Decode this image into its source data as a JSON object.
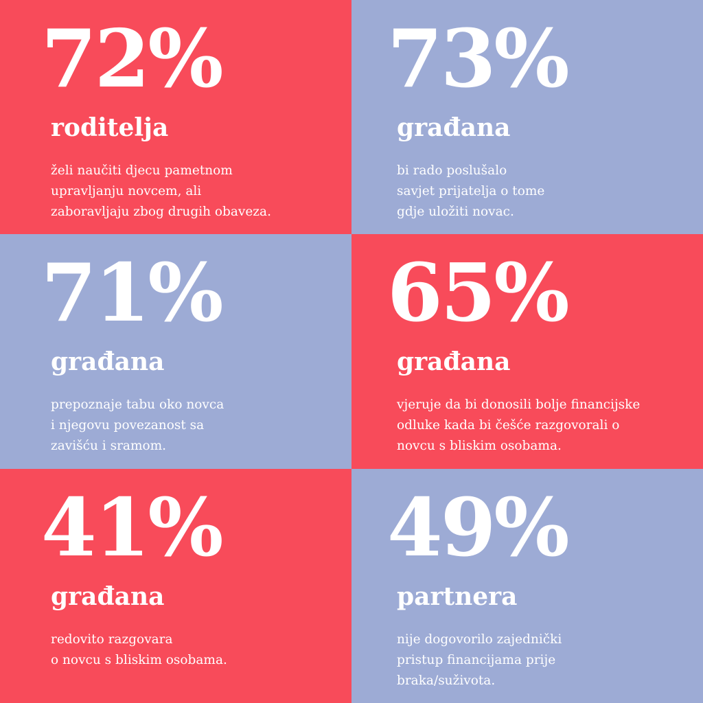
{
  "tiles": [
    {
      "stat": "72%",
      "subject": "roditelja",
      "color": "#f84b5a",
      "lines": [
        "želi naučiti djecu pametnom",
        "upravljanju novcem, ali",
        "zaboravljaju zbog drugih obaveza."
      ]
    },
    {
      "stat": "73%",
      "subject": "građana",
      "color": "#9dabd5",
      "lines": [
        "bi rado poslušalo",
        "savjet prijatelja o tome",
        "gdje uložiti novac."
      ]
    },
    {
      "stat": "71%",
      "subject": "građana",
      "color": "#9dabd5",
      "lines": [
        "prepoznaje tabu oko novca",
        "i njegovu povezanost sa",
        "zavišću i sramom."
      ]
    },
    {
      "stat": "65%",
      "subject": "građana",
      "color": "#f84b5a",
      "lines": [
        "vjeruje da bi donosili bolje financijske",
        "odluke kada bi češće razgovorali o",
        "novcu s bliskim osobama."
      ]
    },
    {
      "stat": "41%",
      "subject": "građana",
      "color": "#f84b5a",
      "lines": [
        "redovito razgovara",
        "o novcu s bliskim osobama."
      ]
    },
    {
      "stat": "49%",
      "subject": "partnera",
      "color": "#9dabd5",
      "lines": [
        "nije dogovorilo zajednički",
        "pristup financijama prije",
        "braka/suživota."
      ]
    }
  ]
}
